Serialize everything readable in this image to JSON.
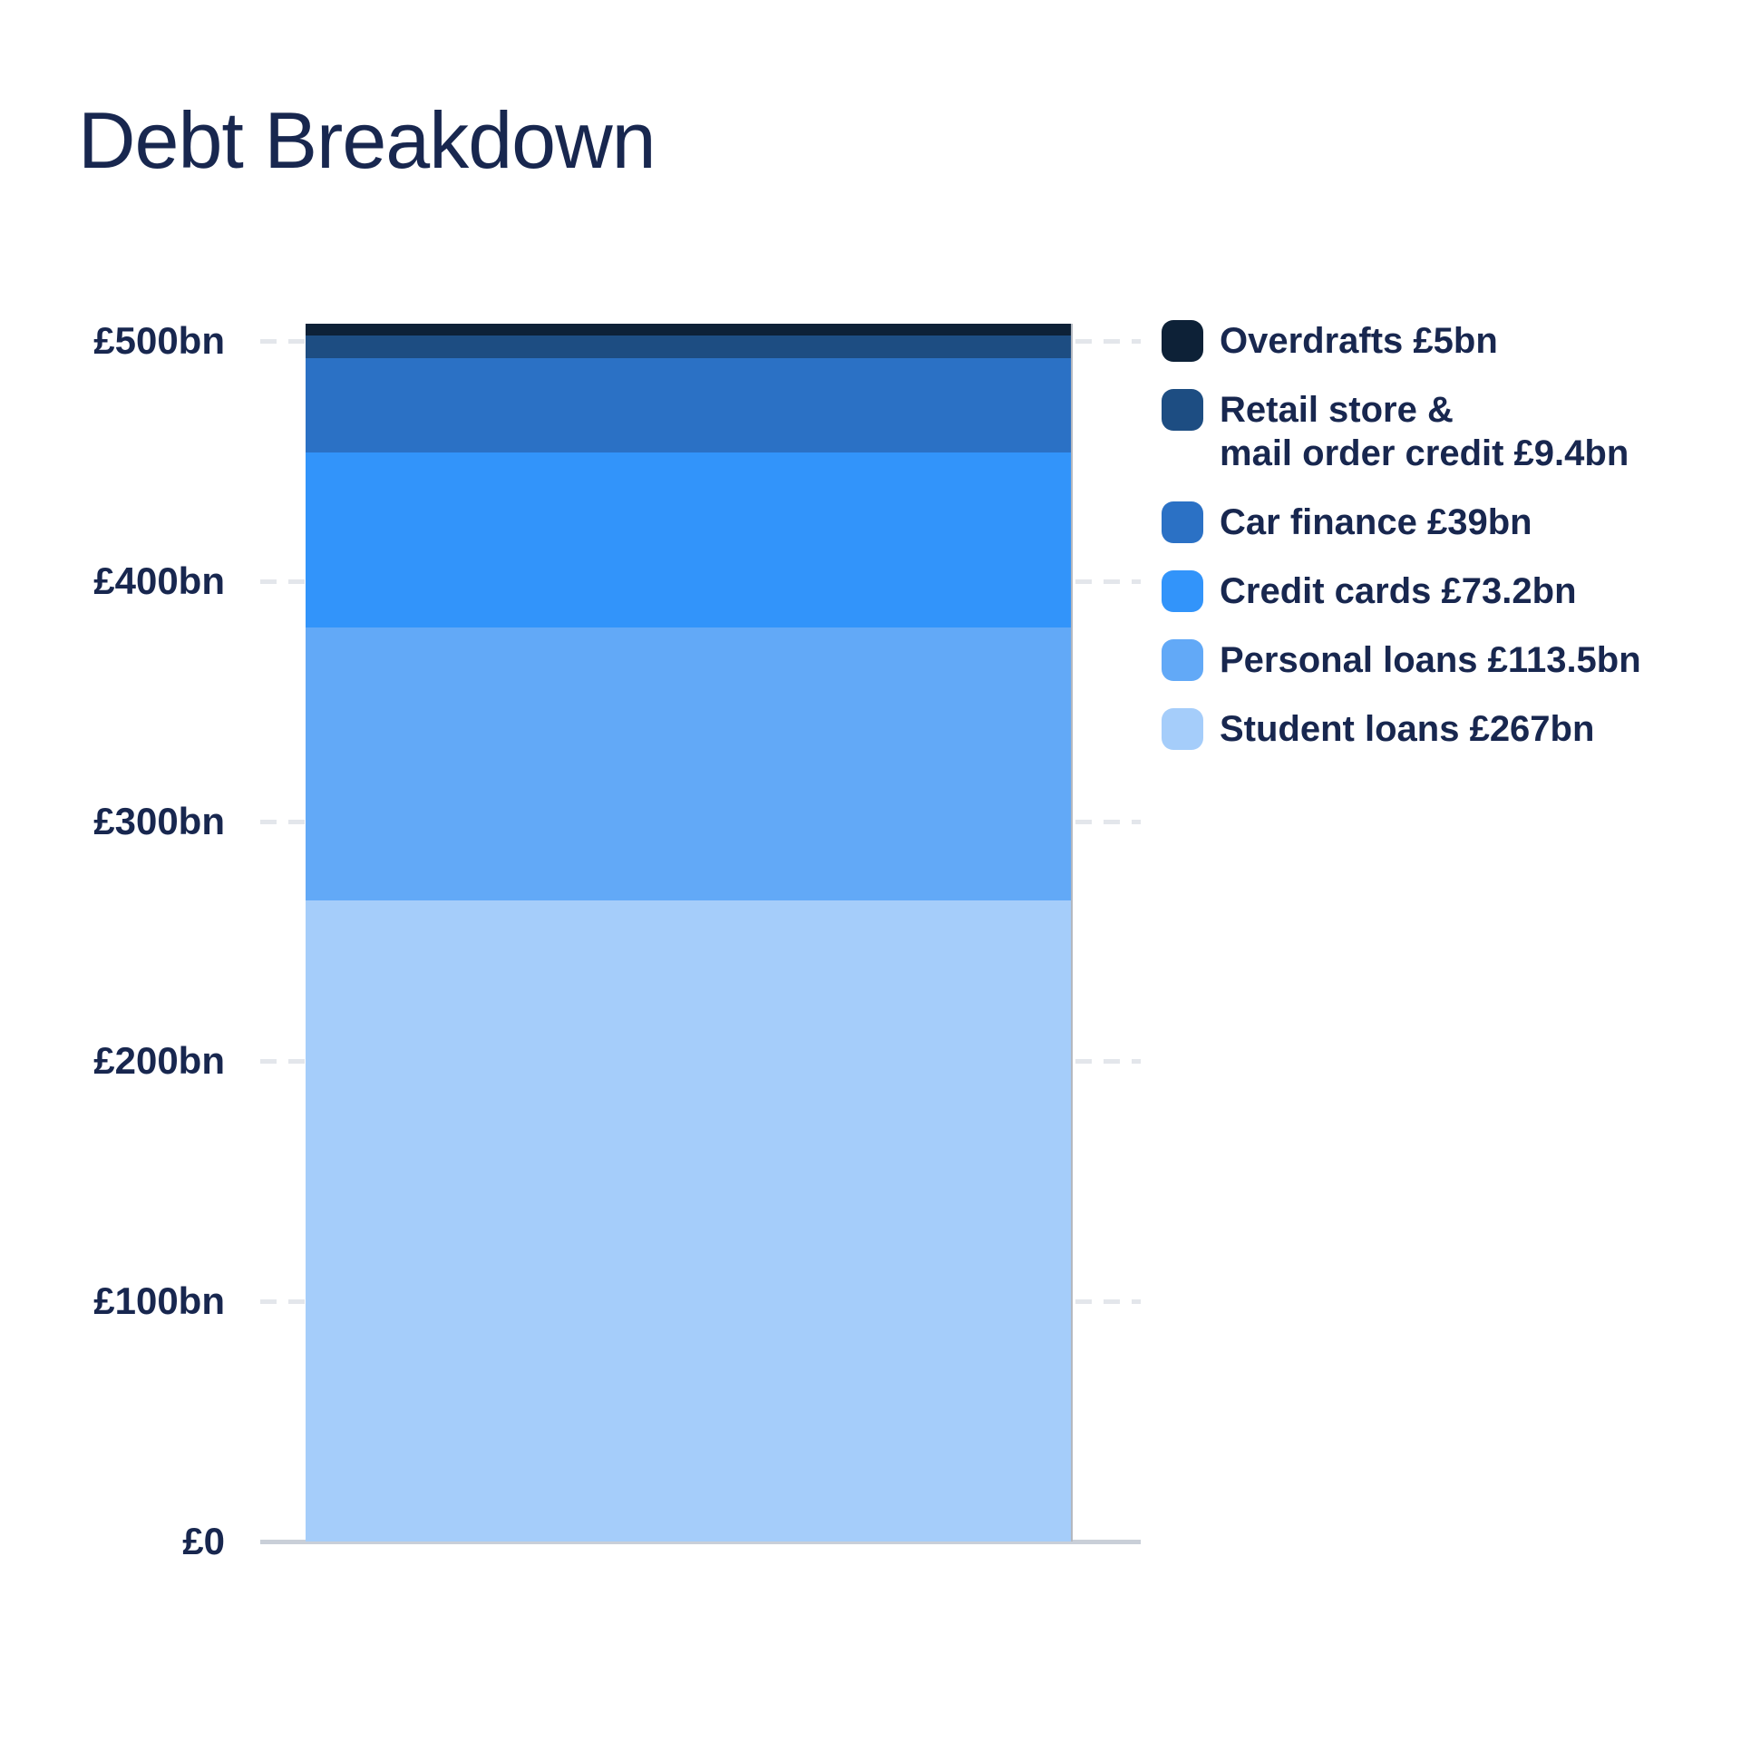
{
  "title": "Debt Breakdown",
  "chart_data": {
    "type": "bar",
    "stacked": true,
    "title": "Debt Breakdown",
    "unit": "billions GBP",
    "ylim": [
      0,
      500
    ],
    "yticks": [
      {
        "value": 0,
        "label": "£0"
      },
      {
        "value": 100,
        "label": "£100bn"
      },
      {
        "value": 200,
        "label": "£200bn"
      },
      {
        "value": 300,
        "label": "£300bn"
      },
      {
        "value": 400,
        "label": "£400bn"
      },
      {
        "value": 500,
        "label": "£500bn"
      }
    ],
    "grid": "dashed horizontal gridlines, solid baseline at zero",
    "legend_position": "right",
    "series": [
      {
        "name": "Overdrafts",
        "value": 5,
        "label_lines": [
          "Overdrafts £5bn"
        ],
        "color": "#0d2137"
      },
      {
        "name": "Retail store & mail order credit",
        "value": 9.4,
        "label_lines": [
          "Retail store &",
          "mail order credit £9.4bn"
        ],
        "color": "#1d4d82"
      },
      {
        "name": "Car finance",
        "value": 39,
        "label_lines": [
          "Car finance £39bn"
        ],
        "color": "#2b71c5"
      },
      {
        "name": "Credit cards",
        "value": 73.2,
        "label_lines": [
          "Credit cards £73.2bn"
        ],
        "color": "#3294fa"
      },
      {
        "name": "Personal loans",
        "value": 113.5,
        "label_lines": [
          "Personal loans £113.5bn"
        ],
        "color": "#62a9f7"
      },
      {
        "name": "Student loans",
        "value": 267,
        "label_lines": [
          "Student loans £267bn"
        ],
        "color": "#a5cdfa"
      }
    ]
  }
}
